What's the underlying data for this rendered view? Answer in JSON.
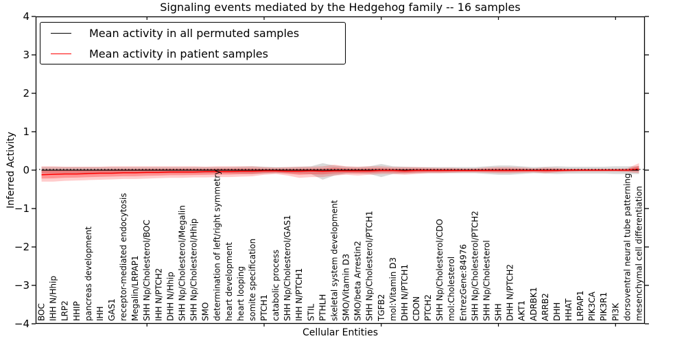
{
  "title": "Signaling events mediated by the Hedgehog family -- 16 samples",
  "axes": {
    "xlabel": "Cellular Entities",
    "ylabel": "Inferred Activity"
  },
  "legend": {
    "entries": [
      {
        "label": "Mean activity in all permuted samples",
        "color": "#000000"
      },
      {
        "label": "Mean activity in patient samples",
        "color": "#ff0000"
      }
    ]
  },
  "colors": {
    "spine": "#000000",
    "zero_line": "#000000",
    "permuted_line": "#000000",
    "patient_line": "#ff0000",
    "permuted_band": "rgba(0,0,0,0.15)",
    "patient_band": "rgba(255,0,0,0.20)",
    "patient_band_inner": "rgba(255,0,0,0.28)",
    "tick_label": "#000000"
  },
  "chart_data": {
    "type": "line",
    "title": "Signaling events mediated by the Hedgehog family -- 16 samples",
    "xlabel": "Cellular Entities",
    "ylabel": "Inferred Activity",
    "ylim": [
      -4,
      4
    ],
    "yticks": [
      -4,
      -3,
      -2,
      -1,
      0,
      1,
      2,
      3,
      4
    ],
    "x_major_tick_every": 10,
    "grid": false,
    "legend_position": "upper left",
    "zero_line": {
      "style": "dotted",
      "color": "#000000",
      "y": 0
    },
    "categories": [
      "BOC",
      "IHH N/Hhip",
      "LRP2",
      "HHIP",
      "pancreas development",
      "IHH",
      "GAS1",
      "receptor-mediated endocytosis",
      "Megalin/LRPAP1",
      "SHH Np/Cholesterol/BOC",
      "IHH N/PTCH2",
      "DHH N/Hhip",
      "SHH Np/Cholesterol/Megalin",
      "SHH Np/Cholesterol/Hhip",
      "SMO",
      "determination of left/right symmetry",
      "heart development",
      "heart looping",
      "somite specification",
      "PTCH1",
      "catabolic process",
      "SHH Np/Cholesterol/GAS1",
      "IHH N/PTCH1",
      "STIL",
      "PTHLH",
      "skeletal system development",
      "SMO/Vitamin D3",
      "SMO/beta Arrestin2",
      "SHH Np/Cholesterol/PTCH1",
      "TGFB2",
      "mol:Vitamin D3",
      "DHH N/PTCH1",
      "CDON",
      "PTCH2",
      "SHH Np/Cholesterol/CDO",
      "mol:Cholesterol",
      "EntrezGene:84976",
      "SHH Np/Cholesterol/PTCH2",
      "SHH Np/Cholesterol",
      "SHH",
      "DHH N/PTCH2",
      "AKT1",
      "ADRBK1",
      "ARRB2",
      "DHH",
      "HHAT",
      "LRPAP1",
      "PIK3CA",
      "PIK3R1",
      "PI3K",
      "dorsoventral neural tube patterning",
      "mesenchymal cell differentiation"
    ],
    "series": [
      {
        "name": "Mean activity in all permuted samples",
        "color": "#000000",
        "values": [
          0,
          0,
          0,
          0,
          0,
          0,
          0,
          0,
          0,
          0,
          0,
          0,
          0,
          0,
          0,
          0,
          0,
          0,
          0,
          0,
          0,
          0,
          0,
          0,
          0,
          0,
          0,
          0,
          0,
          0,
          0,
          0,
          0,
          0,
          0,
          0,
          0,
          0,
          0,
          0,
          0,
          0,
          0,
          0,
          0,
          0,
          0,
          0,
          0,
          0,
          0,
          0
        ],
        "band_upper": [
          0.08,
          0.08,
          0.08,
          0.08,
          0.08,
          0.08,
          0.08,
          0.08,
          0.08,
          0.08,
          0.08,
          0.08,
          0.08,
          0.08,
          0.08,
          0.08,
          0.08,
          0.09,
          0.1,
          0.09,
          0.08,
          0.08,
          0.09,
          0.1,
          0.18,
          0.12,
          0.09,
          0.08,
          0.1,
          0.16,
          0.1,
          0.09,
          0.08,
          0.08,
          0.08,
          0.08,
          0.08,
          0.08,
          0.1,
          0.12,
          0.12,
          0.1,
          0.08,
          0.09,
          0.1,
          0.09,
          0.09,
          0.09,
          0.09,
          0.1,
          0.1,
          0.1
        ],
        "band_lower": [
          -0.08,
          -0.08,
          -0.08,
          -0.08,
          -0.08,
          -0.08,
          -0.08,
          -0.08,
          -0.08,
          -0.08,
          -0.08,
          -0.08,
          -0.08,
          -0.08,
          -0.08,
          -0.08,
          -0.08,
          -0.09,
          -0.1,
          -0.09,
          -0.08,
          -0.08,
          -0.09,
          -0.1,
          -0.25,
          -0.14,
          -0.09,
          -0.08,
          -0.1,
          -0.18,
          -0.1,
          -0.09,
          -0.08,
          -0.08,
          -0.08,
          -0.08,
          -0.08,
          -0.08,
          -0.1,
          -0.12,
          -0.12,
          -0.1,
          -0.08,
          -0.09,
          -0.1,
          -0.09,
          -0.09,
          -0.09,
          -0.09,
          -0.1,
          -0.1,
          -0.1
        ],
        "band_color": "rgba(0,0,0,0.15)"
      },
      {
        "name": "Mean activity in patient samples",
        "color": "#ff0000",
        "values": [
          -0.12,
          -0.11,
          -0.1,
          -0.1,
          -0.09,
          -0.08,
          -0.08,
          -0.07,
          -0.07,
          -0.06,
          -0.06,
          -0.05,
          -0.05,
          -0.05,
          -0.04,
          -0.04,
          -0.04,
          -0.03,
          -0.03,
          -0.02,
          -0.02,
          -0.03,
          -0.03,
          -0.02,
          -0.03,
          -0.02,
          -0.02,
          -0.02,
          -0.02,
          -0.01,
          -0.01,
          -0.02,
          -0.01,
          -0.01,
          -0.01,
          -0.01,
          -0.01,
          -0.01,
          -0.01,
          -0.01,
          -0.01,
          -0.01,
          -0.01,
          -0.01,
          -0.01,
          0.0,
          0.0,
          0.0,
          0.0,
          0.0,
          0.0,
          0.03
        ],
        "band_upper": [
          0.1,
          0.1,
          0.09,
          0.09,
          0.09,
          0.09,
          0.1,
          0.1,
          0.1,
          0.1,
          0.1,
          0.1,
          0.1,
          0.1,
          0.09,
          0.1,
          0.1,
          0.1,
          0.1,
          0.08,
          0.07,
          0.08,
          0.09,
          0.09,
          0.1,
          0.14,
          0.1,
          0.09,
          0.1,
          0.1,
          0.08,
          0.08,
          0.08,
          0.07,
          0.06,
          0.06,
          0.05,
          0.05,
          0.07,
          0.08,
          0.08,
          0.07,
          0.05,
          0.07,
          0.06,
          0.04,
          0.04,
          0.04,
          0.04,
          0.04,
          0.05,
          0.18
        ],
        "band_lower": [
          -0.3,
          -0.3,
          -0.28,
          -0.27,
          -0.26,
          -0.25,
          -0.24,
          -0.23,
          -0.23,
          -0.22,
          -0.21,
          -0.2,
          -0.2,
          -0.19,
          -0.19,
          -0.18,
          -0.18,
          -0.17,
          -0.16,
          -0.12,
          -0.1,
          -0.14,
          -0.2,
          -0.18,
          -0.18,
          -0.14,
          -0.12,
          -0.14,
          -0.12,
          -0.1,
          -0.1,
          -0.12,
          -0.1,
          -0.08,
          -0.08,
          -0.07,
          -0.06,
          -0.06,
          -0.07,
          -0.08,
          -0.08,
          -0.07,
          -0.06,
          -0.08,
          -0.06,
          -0.05,
          -0.04,
          -0.04,
          -0.04,
          -0.04,
          -0.05,
          -0.08
        ],
        "band_color": "rgba(255,0,0,0.20)"
      }
    ]
  }
}
